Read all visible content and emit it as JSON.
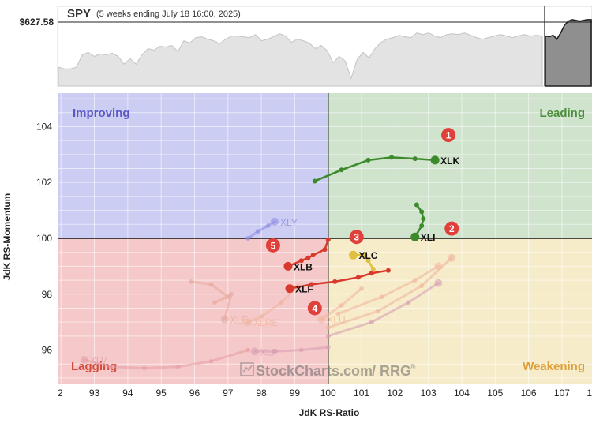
{
  "header": {
    "symbol": "SPY",
    "period": "(5 weeks ending July 18 16:00, 2025)",
    "price_label": "$627.58"
  },
  "axes": {
    "xlabel": "JdK RS-Ratio",
    "ylabel": "JdK RS-Momentum"
  },
  "quadrants": {
    "improving": "Improving",
    "leading": "Leading",
    "lagging": "Lagging",
    "weakening": "Weakening"
  },
  "colors": {
    "improving": "#cccdf2",
    "leading": "#cfe3cd",
    "lagging": "#f5c9c9",
    "weakening": "#f7ecc9",
    "xlk": "#3d8a2d",
    "xli": "#3d8a2d",
    "xlc": "#e0c040",
    "xlb": "#d73a2c",
    "xlf": "#d73a2c",
    "markers": "#e0403a",
    "spy_line": "#c8c8c8"
  },
  "watermark": {
    "brand": "StockCharts.com",
    "suffix": "/ RRG",
    "reg": "®"
  },
  "markers": [
    {
      "label": "1",
      "x": 103.6,
      "y": 103.7
    },
    {
      "label": "2",
      "x": 103.7,
      "y": 100.35
    },
    {
      "label": "3",
      "x": 100.85,
      "y": 100.05
    },
    {
      "label": "4",
      "x": 99.6,
      "y": 97.5
    },
    {
      "label": "5",
      "x": 98.35,
      "y": 99.75
    }
  ],
  "chart_data": {
    "type": "scatter",
    "title": "SPY (5 weeks ending July 18 16:00, 2025)",
    "xlabel": "JdK RS-Ratio",
    "ylabel": "JdK RS-Momentum",
    "xlim": [
      91.9,
      107.9
    ],
    "ylim": [
      94.8,
      105.2
    ],
    "x_ticks": [
      "2",
      "93",
      "94",
      "95",
      "96",
      "97",
      "98",
      "99",
      "100",
      "101",
      "102",
      "103",
      "104",
      "105",
      "106",
      "107",
      "1"
    ],
    "y_ticks": [
      96,
      98,
      100,
      102,
      104
    ],
    "center": [
      100,
      100
    ],
    "grid": true,
    "series": [
      {
        "name": "XLK",
        "highlight": true,
        "x": [
          99.6,
          100.4,
          101.2,
          101.9,
          102.6,
          103.2
        ],
        "y": [
          102.05,
          102.45,
          102.8,
          102.9,
          102.85,
          102.8
        ]
      },
      {
        "name": "XLI",
        "highlight": true,
        "x": [
          102.65,
          102.8,
          102.85,
          102.8,
          102.6
        ],
        "y": [
          101.2,
          100.95,
          100.7,
          100.45,
          100.05
        ]
      },
      {
        "name": "XLC",
        "highlight": true,
        "x": [
          101.35,
          101.2,
          101.1,
          100.75
        ],
        "y": [
          98.9,
          99.2,
          99.4,
          99.4
        ]
      },
      {
        "name": "XLB",
        "highlight": true,
        "x": [
          100.0,
          99.9,
          99.55,
          99.4,
          99.2,
          98.8
        ],
        "y": [
          99.95,
          99.6,
          99.4,
          99.3,
          99.2,
          99.0
        ]
      },
      {
        "name": "XLF",
        "highlight": true,
        "x": [
          101.8,
          101.3,
          100.9,
          100.2,
          99.5,
          98.85
        ],
        "y": [
          98.85,
          98.75,
          98.6,
          98.45,
          98.35,
          98.2
        ]
      },
      {
        "name": "XLY",
        "highlight": false,
        "x": [
          97.6,
          97.9,
          98.2,
          98.4
        ],
        "y": [
          100.0,
          100.25,
          100.45,
          100.6
        ]
      },
      {
        "name": "XLE",
        "highlight": false,
        "x": [
          95.9,
          96.5,
          97.0,
          96.6,
          97.1,
          96.9
        ],
        "y": [
          98.45,
          98.35,
          97.9,
          97.7,
          98.0,
          97.1
        ]
      },
      {
        "name": "XLRE",
        "highlight": false,
        "x": [
          99.1,
          98.6,
          98.0,
          97.6
        ],
        "y": [
          98.3,
          97.7,
          97.2,
          97.0
        ]
      },
      {
        "name": "XLU",
        "highlight": false,
        "x": [
          101.0,
          100.4,
          99.8
        ],
        "y": [
          98.2,
          97.6,
          97.1
        ]
      },
      {
        "name": "XLP",
        "highlight": false,
        "x": [
          100.0,
          99.2,
          98.4,
          97.8
        ],
        "y": [
          96.1,
          96.0,
          95.95,
          95.95
        ]
      },
      {
        "name": "XLV",
        "highlight": false,
        "x": [
          97.6,
          96.5,
          95.5,
          94.5,
          93.5,
          92.7
        ],
        "y": [
          96.0,
          95.6,
          95.4,
          95.35,
          95.4,
          95.65
        ]
      },
      {
        "name": "",
        "highlight": false,
        "x": [
          100.0,
          101.5,
          102.8,
          103.7
        ],
        "y": [
          96.8,
          97.4,
          98.3,
          99.3
        ]
      },
      {
        "name": "",
        "highlight": false,
        "x": [
          100.3,
          101.6,
          102.6,
          103.3
        ],
        "y": [
          97.3,
          97.9,
          98.5,
          99.0
        ]
      },
      {
        "name": "",
        "highlight": false,
        "x": [
          100.0,
          101.3,
          102.4,
          103.3
        ],
        "y": [
          96.5,
          97.0,
          97.7,
          98.4
        ]
      }
    ],
    "spy_price": {
      "label": "$627.58",
      "values": [
        0.24,
        0.22,
        0.22,
        0.24,
        0.4,
        0.43,
        0.38,
        0.41,
        0.4,
        0.42,
        0.38,
        0.28,
        0.35,
        0.28,
        0.4,
        0.48,
        0.46,
        0.51,
        0.5,
        0.52,
        0.44,
        0.58,
        0.55,
        0.62,
        0.63,
        0.6,
        0.58,
        0.54,
        0.6,
        0.64,
        0.64,
        0.63,
        0.62,
        0.66,
        0.58,
        0.6,
        0.63,
        0.67,
        0.64,
        0.56,
        0.6,
        0.58,
        0.55,
        0.48,
        0.52,
        0.45,
        0.3,
        0.38,
        0.32,
        0.1,
        0.34,
        0.43,
        0.36,
        0.48,
        0.56,
        0.6,
        0.62,
        0.65,
        0.63,
        0.62,
        0.68,
        0.66,
        0.68,
        0.64,
        0.62,
        0.66,
        0.67,
        0.66,
        0.68,
        0.65,
        0.62,
        0.6,
        0.62,
        0.64,
        0.66,
        0.64,
        0.62,
        0.64,
        0.66,
        0.64,
        0.65,
        0.64
      ],
      "recent_values": [
        0.64,
        0.63,
        0.65,
        0.6,
        0.68,
        0.78,
        0.83,
        0.85,
        0.84,
        0.83,
        0.84,
        0.85,
        0.85
      ]
    }
  }
}
